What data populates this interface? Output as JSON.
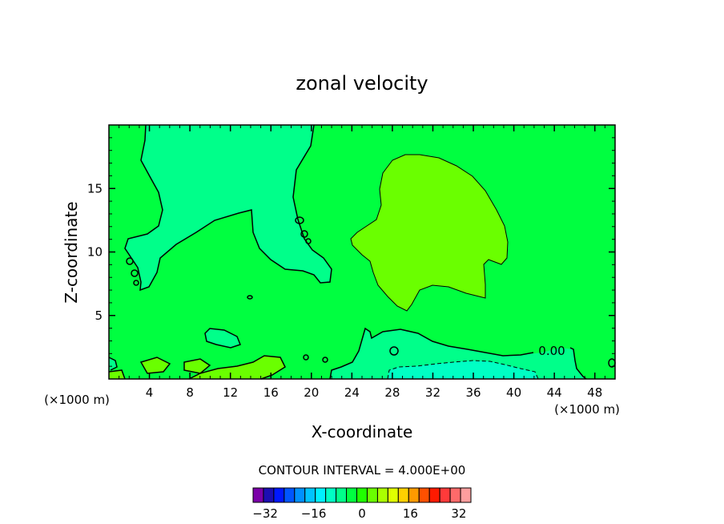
{
  "chart_data": {
    "type": "filled-contour",
    "title": "zonal velocity",
    "xlabel": "X-coordinate",
    "ylabel": "Z-coordinate",
    "x_unit_label": "(×1000 m)",
    "x_unit_label_right": "(×1000 m)",
    "x_ticks": [
      4,
      8,
      12,
      16,
      20,
      24,
      28,
      32,
      36,
      40,
      44,
      48
    ],
    "y_ticks": [
      5,
      10,
      15
    ],
    "xlim": [
      0,
      50
    ],
    "ylim": [
      0,
      20
    ],
    "contour_label": "0.00",
    "contour_interval_text": "CONTOUR INTERVAL = 4.000E+00",
    "colorbar": {
      "tick_labels": [
        "-32",
        "-16",
        "0",
        "16",
        "32"
      ],
      "tick_values": [
        -32,
        -16,
        0,
        16,
        32
      ],
      "min": -36,
      "max": 36,
      "colors": [
        "#7a00a8",
        "#1c0eb2",
        "#0018ff",
        "#0055ff",
        "#0090ff",
        "#00c3ff",
        "#00f0ff",
        "#00ffc4",
        "#00ff8a",
        "#00ff40",
        "#20ff00",
        "#6aff00",
        "#aaff00",
        "#e0ff00",
        "#ffd000",
        "#ff9a00",
        "#ff5000",
        "#ff1a00",
        "#ff3a3a",
        "#ff6a6a",
        "#ff9e9e"
      ]
    },
    "regions": [
      {
        "name": "background",
        "value_range": [
          0,
          4
        ],
        "color": "#00ff40"
      },
      {
        "name": "upper-left-negative",
        "value_range": [
          -4,
          0
        ],
        "color": "#00ff8a"
      },
      {
        "name": "central-positive-blob",
        "value_range": [
          4,
          8
        ],
        "color": "#6aff00"
      },
      {
        "name": "near-surface-negative",
        "value_range": [
          -4,
          0
        ],
        "color": "#00ff8a"
      },
      {
        "name": "near-surface-strong-negative",
        "value_range": [
          -8,
          -4
        ],
        "color": "#00ffc4"
      },
      {
        "name": "surface-positive-patches",
        "value_range": [
          4,
          8
        ],
        "color": "#6aff00"
      }
    ]
  }
}
